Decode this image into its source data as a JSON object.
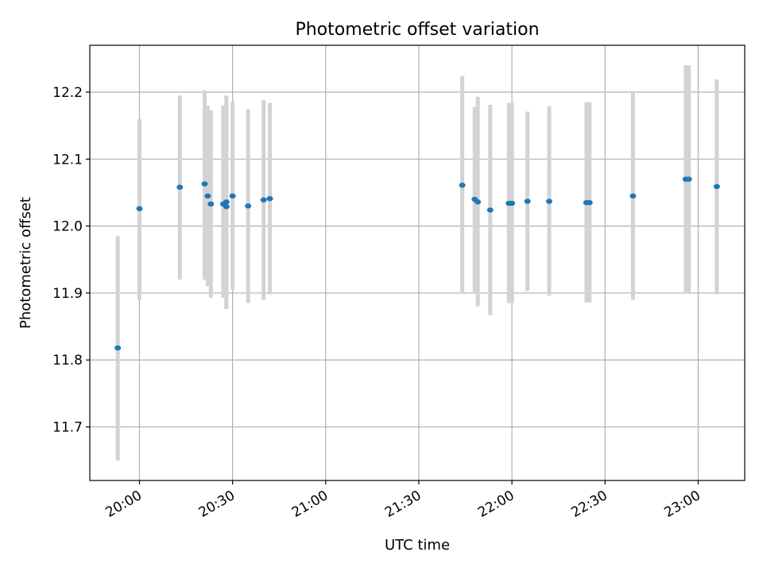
{
  "chart_data": {
    "type": "scatter",
    "title": "Photometric offset variation",
    "xlabel": "UTC time",
    "ylabel": "Photometric offset",
    "x_ticks": [
      "20:00",
      "20:30",
      "21:00",
      "21:30",
      "22:00",
      "22:30",
      "23:00"
    ],
    "y_ticks": [
      "11.7",
      "11.8",
      "11.9",
      "12.0",
      "12.1",
      "12.2"
    ],
    "xlim": [
      "19:44",
      "23:15"
    ],
    "ylim": [
      11.62,
      12.27
    ],
    "grid": true,
    "errorbar_color": "#d3d3d3",
    "marker_color": "#1f77b4",
    "points": [
      {
        "x": "19:53",
        "y": 11.818,
        "err_low": 11.65,
        "err_high": 11.985
      },
      {
        "x": "20:00",
        "y": 12.026,
        "err_low": 11.89,
        "err_high": 12.16
      },
      {
        "x": "20:13",
        "y": 12.058,
        "err_low": 11.92,
        "err_high": 12.195
      },
      {
        "x": "20:21",
        "y": 12.063,
        "err_low": 11.92,
        "err_high": 12.203
      },
      {
        "x": "20:22",
        "y": 12.045,
        "err_low": 11.91,
        "err_high": 12.18
      },
      {
        "x": "20:23",
        "y": 12.033,
        "err_low": 11.893,
        "err_high": 12.173
      },
      {
        "x": "20:27",
        "y": 12.033,
        "err_low": 11.893,
        "err_high": 12.18
      },
      {
        "x": "20:28",
        "y": 12.029,
        "err_low": 11.876,
        "err_high": 12.183
      },
      {
        "x": "20:28",
        "y": 12.036,
        "err_low": 11.877,
        "err_high": 12.195
      },
      {
        "x": "20:30",
        "y": 12.045,
        "err_low": 11.905,
        "err_high": 12.185
      },
      {
        "x": "20:35",
        "y": 12.03,
        "err_low": 11.885,
        "err_high": 12.175
      },
      {
        "x": "20:40",
        "y": 12.039,
        "err_low": 11.89,
        "err_high": 12.188
      },
      {
        "x": "20:42",
        "y": 12.041,
        "err_low": 11.898,
        "err_high": 12.184
      },
      {
        "x": "21:44",
        "y": 12.061,
        "err_low": 11.9,
        "err_high": 12.224
      },
      {
        "x": "21:48",
        "y": 12.04,
        "err_low": 11.9,
        "err_high": 12.178
      },
      {
        "x": "21:49",
        "y": 12.036,
        "err_low": 11.88,
        "err_high": 12.193
      },
      {
        "x": "21:53",
        "y": 12.024,
        "err_low": 11.867,
        "err_high": 12.181
      },
      {
        "x": "21:59",
        "y": 12.034,
        "err_low": 11.885,
        "err_high": 12.184
      },
      {
        "x": "22:00",
        "y": 12.034,
        "err_low": 11.885,
        "err_high": 12.184
      },
      {
        "x": "22:05",
        "y": 12.037,
        "err_low": 11.903,
        "err_high": 12.171
      },
      {
        "x": "22:12",
        "y": 12.037,
        "err_low": 11.896,
        "err_high": 12.179
      },
      {
        "x": "22:24",
        "y": 12.035,
        "err_low": 11.886,
        "err_high": 12.185
      },
      {
        "x": "22:25",
        "y": 12.035,
        "err_low": 11.886,
        "err_high": 12.185
      },
      {
        "x": "22:39",
        "y": 12.045,
        "err_low": 11.89,
        "err_high": 12.2
      },
      {
        "x": "22:56",
        "y": 12.07,
        "err_low": 11.9,
        "err_high": 12.24
      },
      {
        "x": "22:57",
        "y": 12.07,
        "err_low": 11.9,
        "err_high": 12.24
      },
      {
        "x": "23:06",
        "y": 12.059,
        "err_low": 11.898,
        "err_high": 12.219
      }
    ]
  }
}
